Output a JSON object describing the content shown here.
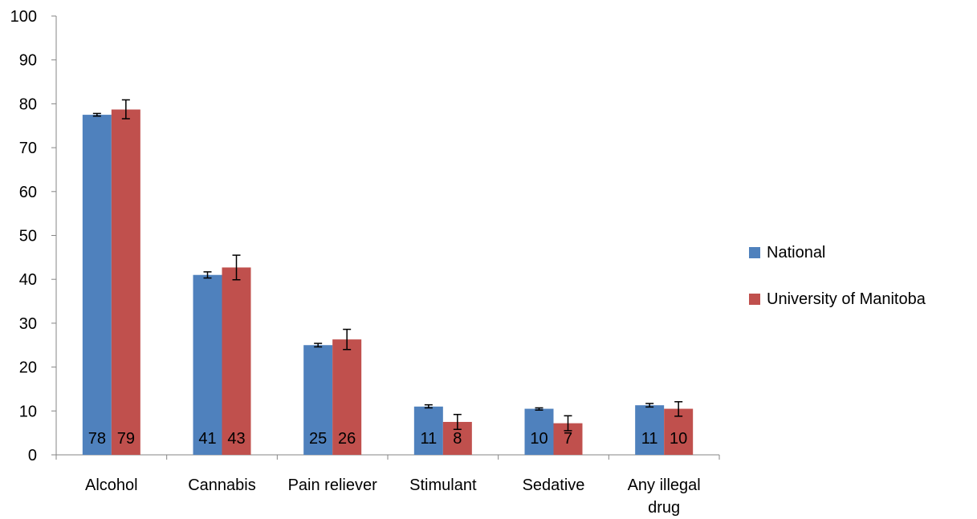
{
  "chart_data": {
    "type": "bar",
    "categories": [
      "Alcohol",
      "Cannabis",
      "Pain reliever",
      "Stimulant",
      "Sedative",
      "Any illegal drug"
    ],
    "series": [
      {
        "name": "National",
        "color": "#4f81bd",
        "values": [
          77.5,
          41.0,
          25.0,
          11.0,
          10.5,
          11.3
        ],
        "error_low": [
          77.2,
          40.3,
          24.6,
          10.7,
          10.2,
          10.9
        ],
        "error_high": [
          77.8,
          41.7,
          25.4,
          11.4,
          10.7,
          11.7
        ],
        "labels": [
          "78",
          "41",
          "25",
          "11",
          "10",
          "11"
        ]
      },
      {
        "name": "University of Manitoba",
        "color": "#c0504d",
        "values": [
          78.7,
          42.7,
          26.3,
          7.5,
          7.2,
          10.5
        ],
        "error_low": [
          76.6,
          39.9,
          24.0,
          5.8,
          5.5,
          8.8
        ],
        "error_high": [
          80.9,
          45.5,
          28.6,
          9.2,
          8.9,
          12.1
        ],
        "labels": [
          "79",
          "43",
          "26",
          "8",
          "7",
          "10"
        ]
      }
    ],
    "ylim": [
      0,
      100
    ],
    "yticks": [
      0,
      10,
      20,
      30,
      40,
      50,
      60,
      70,
      80,
      90,
      100
    ],
    "xlabel": "",
    "ylabel": "",
    "legend": "right",
    "grid": false
  }
}
